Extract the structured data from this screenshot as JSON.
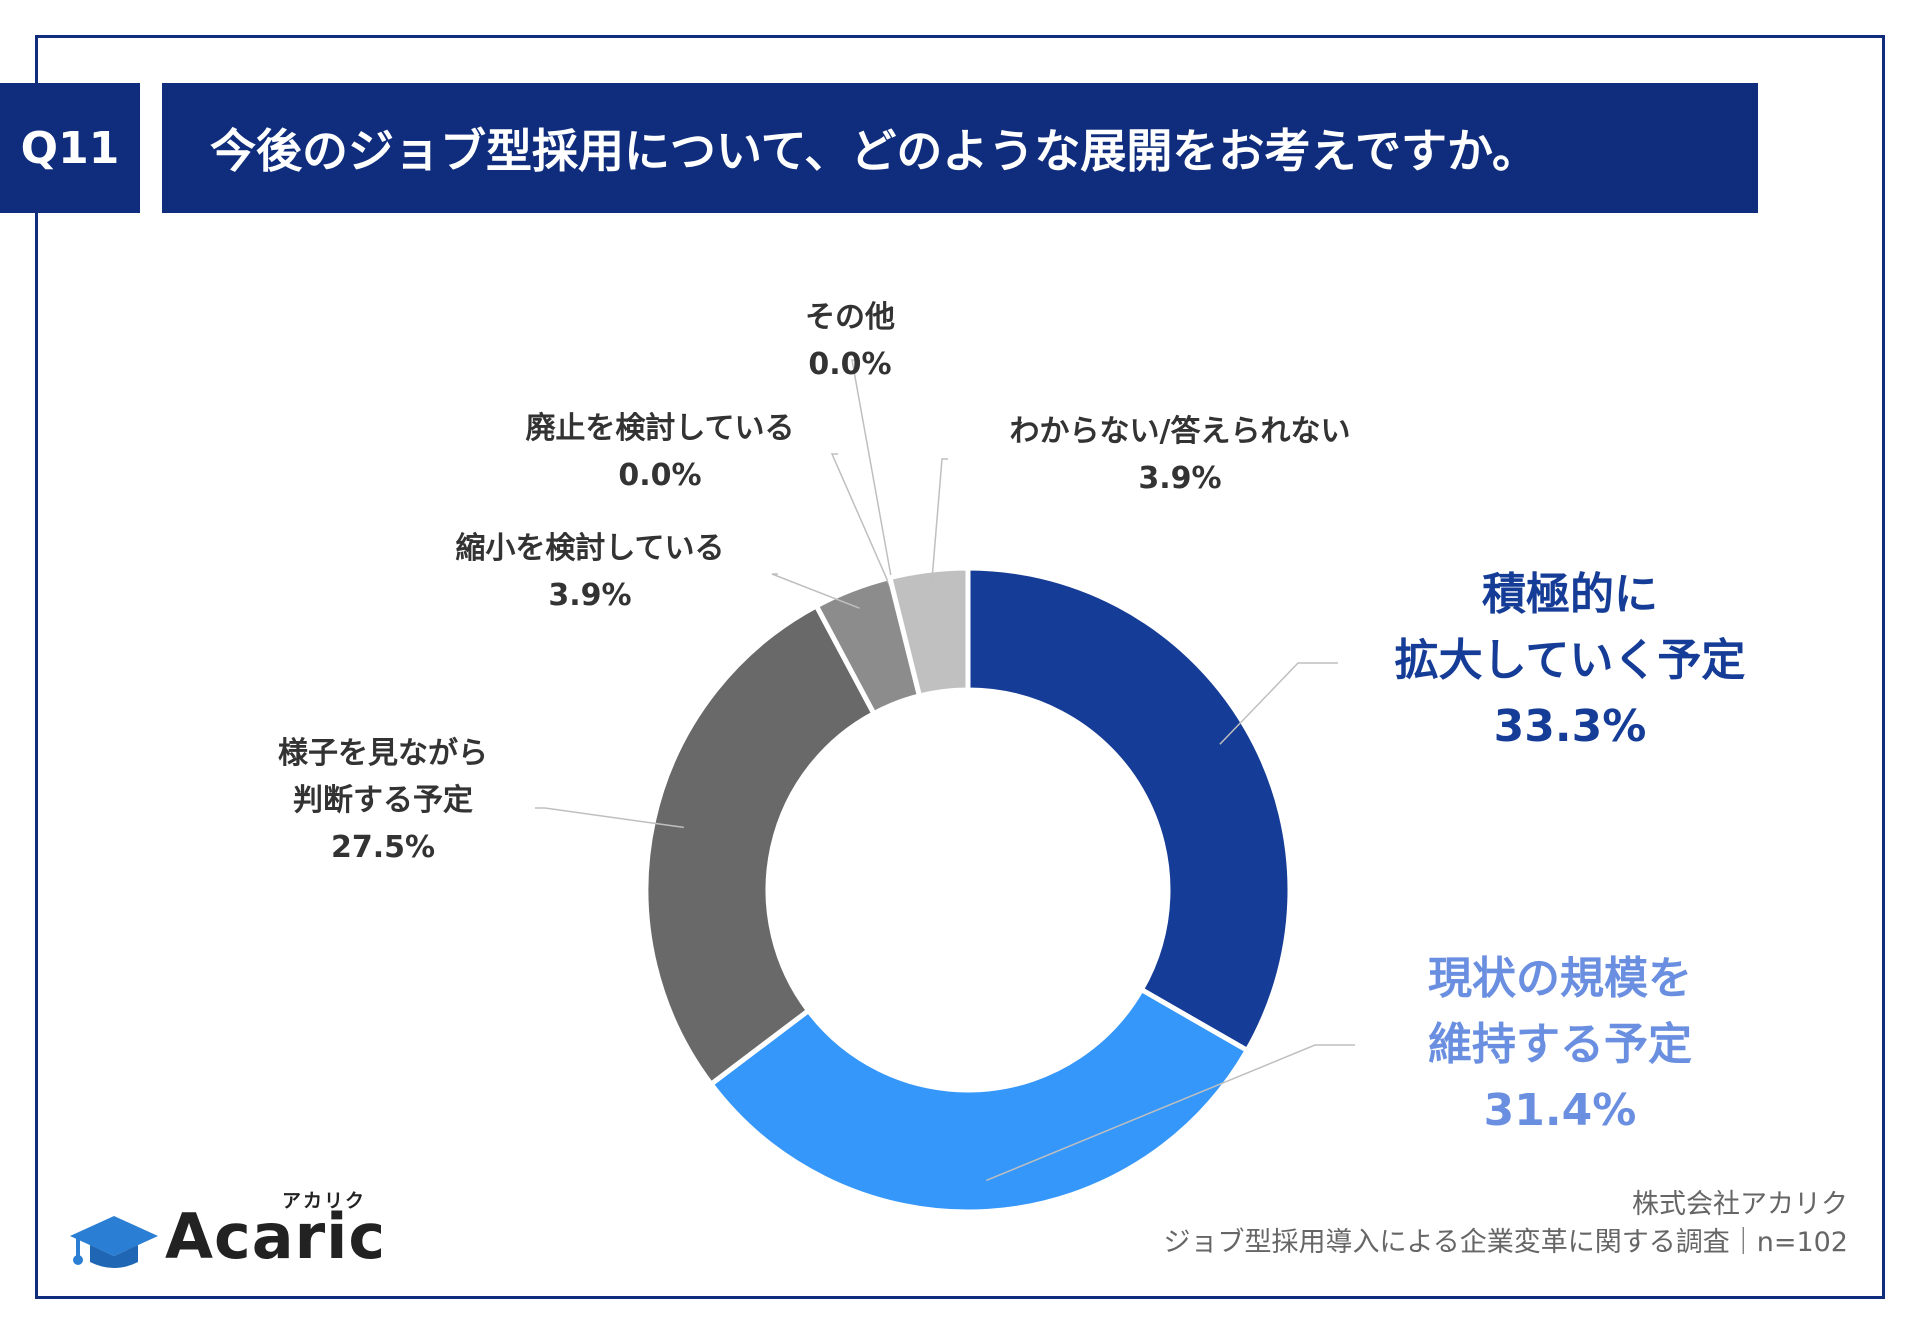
{
  "question": {
    "number": "Q11",
    "title": "今後のジョブ型採用について、どのような展開をお考えですか。"
  },
  "chart_data": {
    "type": "pie",
    "title": "今後のジョブ型採用について、どのような展開をお考えですか。",
    "slices": [
      {
        "label_lines": [
          "積極的に",
          "拡大していく予定"
        ],
        "value": 33.3,
        "value_label": "33.3%",
        "color": "#153c96",
        "label_color": "#153c96"
      },
      {
        "label_lines": [
          "現状の規模を",
          "維持する予定"
        ],
        "value": 31.4,
        "value_label": "31.4%",
        "color": "#3597fa",
        "label_color": "#6b8fe0"
      },
      {
        "label_lines": [
          "様子を見ながら",
          "判断する予定"
        ],
        "value": 27.5,
        "value_label": "27.5%",
        "color": "#696969",
        "label_color": "#333333"
      },
      {
        "label_lines": [
          "縮小を検討している"
        ],
        "value": 3.9,
        "value_label": "3.9%",
        "color": "#8c8c8c",
        "label_color": "#333333"
      },
      {
        "label_lines": [
          "廃止を検討している"
        ],
        "value": 0.0,
        "value_label": "0.0%",
        "color": "#a6a6a6",
        "label_color": "#333333"
      },
      {
        "label_lines": [
          "その他"
        ],
        "value": 0.0,
        "value_label": "0.0%",
        "color": "#b3b3b3",
        "label_color": "#333333"
      },
      {
        "label_lines": [
          "わからない/答えられない"
        ],
        "value": 3.9,
        "value_label": "3.9%",
        "color": "#c0c0c0",
        "label_color": "#333333"
      }
    ]
  },
  "source": {
    "company": "株式会社アカリク",
    "survey": "ジョブ型採用導入による企業変革に関する調査｜n=102"
  },
  "logo": {
    "name": "Acaric",
    "ruby": "アカリク"
  },
  "colors": {
    "frame": "#0f2d7c",
    "header_bg": "#0f2d7c"
  }
}
